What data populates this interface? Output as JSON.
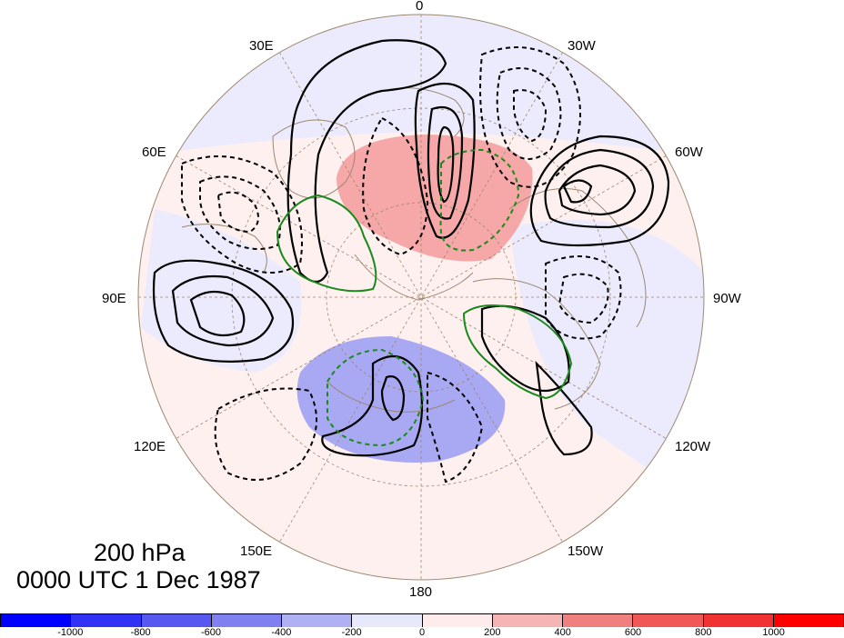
{
  "map": {
    "level": "200 hPa",
    "datetime": "0000 UTC 1 Dec 1987",
    "longitude_labels": {
      "top": "0",
      "upper_left_30": "30E",
      "upper_right_30": "30W",
      "left_60": "60E",
      "right_60": "60W",
      "left_90": "90E",
      "right_90": "90W",
      "left_120": "120E",
      "right_120": "120W",
      "left_150": "150E",
      "right_150": "150W",
      "bottom": "180"
    },
    "colors": {
      "positive_shading": "#f59a9a",
      "negative_shading": "#a9a9f5",
      "weak_positive": "#fdeceb",
      "weak_negative": "#ebebfc",
      "coastline": "#9c8770",
      "contour": "#000000",
      "green_contour": "#1a8a1a"
    }
  },
  "colorbar": {
    "colors": [
      "#0000ff",
      "#3232f5",
      "#5858f0",
      "#8080f0",
      "#b0b0f5",
      "#e8e8fc",
      "#fdeceb",
      "#f5b5b5",
      "#f08080",
      "#f05858",
      "#f03232",
      "#ff0000"
    ],
    "tick_labels": [
      "-1000",
      "-800",
      "-600",
      "-400",
      "-200",
      "0",
      "200",
      "400",
      "600",
      "800",
      "1000"
    ]
  }
}
